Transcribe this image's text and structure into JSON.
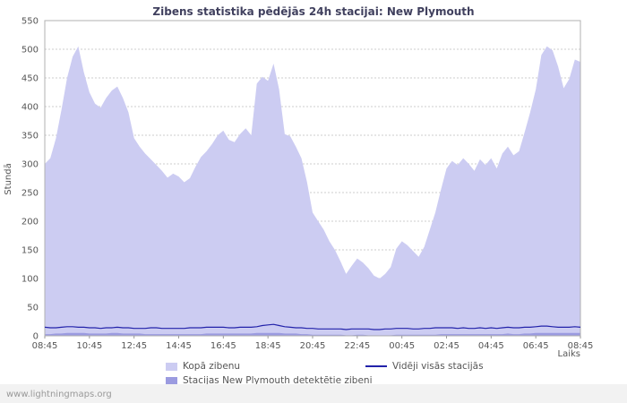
{
  "page": {
    "watermark": "www.lightningmaps.org"
  },
  "chart_data": {
    "type": "area",
    "title": "Zibens statistika pēdējās 24h stacijai: New Plymouth",
    "ylabel": "Stundā",
    "xlabel": "Laiks",
    "ylim": [
      0,
      550
    ],
    "y_ticks": [
      0,
      50,
      100,
      150,
      200,
      250,
      300,
      350,
      400,
      450,
      500,
      550
    ],
    "x_tick_labels": [
      "08:45",
      "10:45",
      "12:45",
      "14:45",
      "16:45",
      "18:45",
      "20:45",
      "22:45",
      "00:45",
      "02:45",
      "04:45",
      "06:45",
      "08:45"
    ],
    "x_start": "08:45",
    "x_step_minutes": 15,
    "grid": "horizontal-dotted",
    "legend_position": "bottom",
    "colors": {
      "grid": "#cccccc",
      "border": "#b0b0b0",
      "axis_text": "#555555"
    },
    "series": [
      {
        "name": "Kopā zibenu",
        "type": "area",
        "color": "#ccccf2",
        "values": [
          300,
          310,
          345,
          395,
          450,
          487,
          505,
          460,
          425,
          405,
          398,
          415,
          428,
          435,
          415,
          390,
          345,
          330,
          318,
          308,
          298,
          288,
          276,
          283,
          278,
          268,
          275,
          295,
          312,
          322,
          335,
          350,
          358,
          342,
          338,
          352,
          362,
          350,
          440,
          452,
          445,
          475,
          430,
          352,
          348,
          330,
          310,
          268,
          215,
          200,
          185,
          165,
          150,
          130,
          108,
          122,
          135,
          128,
          118,
          105,
          100,
          108,
          120,
          152,
          165,
          158,
          148,
          138,
          155,
          185,
          215,
          255,
          292,
          305,
          298,
          310,
          300,
          288,
          308,
          298,
          310,
          292,
          318,
          330,
          315,
          322,
          355,
          390,
          430,
          490,
          505,
          498,
          470,
          432,
          448,
          482,
          478
        ]
      },
      {
        "name": "Stacijas New Plymouth detektētie zibeni",
        "type": "area",
        "color": "#9b9be0",
        "values": [
          3,
          3,
          4,
          4,
          5,
          5,
          5,
          5,
          4,
          4,
          4,
          4,
          5,
          5,
          4,
          4,
          4,
          4,
          3,
          3,
          3,
          3,
          3,
          3,
          3,
          3,
          3,
          3,
          3,
          4,
          4,
          4,
          4,
          4,
          4,
          4,
          4,
          4,
          5,
          5,
          5,
          5,
          5,
          4,
          4,
          4,
          3,
          3,
          2,
          2,
          2,
          2,
          2,
          2,
          1,
          1,
          2,
          2,
          1,
          1,
          1,
          1,
          1,
          2,
          2,
          2,
          2,
          2,
          2,
          2,
          2,
          3,
          3,
          3,
          3,
          3,
          3,
          3,
          3,
          3,
          3,
          3,
          3,
          4,
          3,
          3,
          4,
          4,
          5,
          5,
          5,
          5,
          5,
          5,
          5,
          5,
          5
        ]
      },
      {
        "name": "Vidēji visās stacijās",
        "type": "line",
        "color": "#2222aa",
        "values": [
          15,
          14,
          14,
          15,
          16,
          16,
          15,
          15,
          14,
          14,
          13,
          14,
          14,
          15,
          14,
          14,
          13,
          13,
          13,
          14,
          14,
          13,
          13,
          13,
          13,
          13,
          14,
          14,
          14,
          15,
          15,
          15,
          15,
          14,
          14,
          15,
          15,
          15,
          16,
          18,
          19,
          20,
          18,
          16,
          15,
          14,
          14,
          13,
          13,
          12,
          12,
          12,
          12,
          12,
          11,
          12,
          12,
          12,
          12,
          11,
          11,
          12,
          12,
          13,
          13,
          13,
          12,
          12,
          13,
          13,
          14,
          14,
          14,
          14,
          13,
          14,
          13,
          13,
          14,
          13,
          14,
          13,
          14,
          15,
          14,
          14,
          15,
          15,
          16,
          17,
          17,
          16,
          15,
          15,
          15,
          16,
          15
        ]
      }
    ]
  }
}
